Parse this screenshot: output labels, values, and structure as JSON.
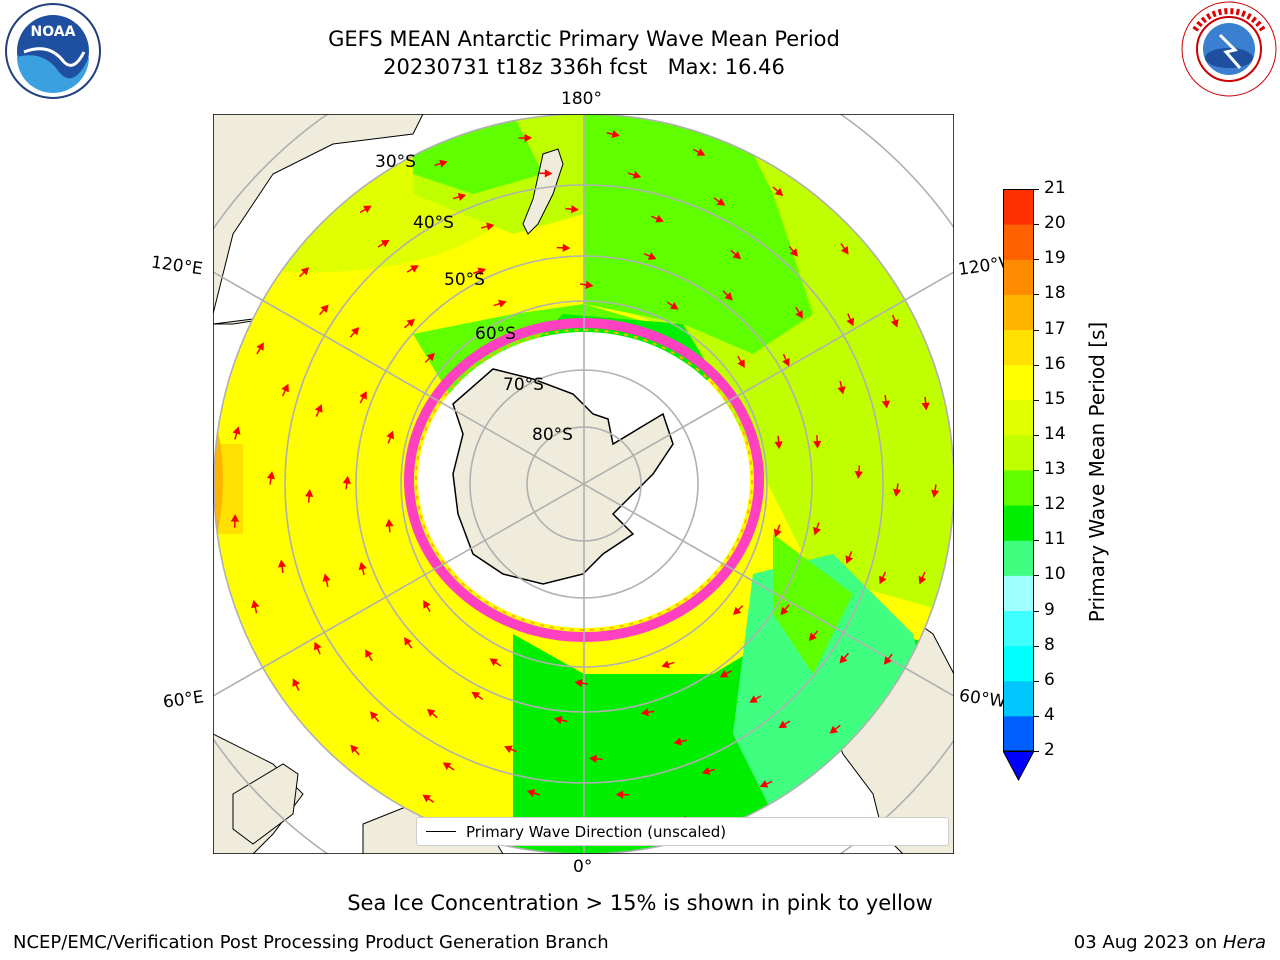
{
  "header": {
    "title_line1": "GEFS MEAN Antarctic Primary Wave Mean Period",
    "title_line2": "20230731 t18z 336h fcst   Max: 16.46"
  },
  "logos": {
    "left": {
      "name": "NOAA",
      "ring_text": "NATIONAL OCEANIC AND ATMOSPHERIC ADMINISTRATION · U.S. DEPARTMENT OF COMMERCE"
    },
    "right": {
      "ring_text": "NATIONAL WEATHER SERVICE"
    }
  },
  "map": {
    "lon_labels": {
      "top": "180°",
      "bottom": "0°",
      "left_upper": "120°E",
      "left_lower": "60°E",
      "right_upper": "120°W",
      "right_lower": "60°W"
    },
    "lat_labels": [
      "30°S",
      "40°S",
      "50°S",
      "60°S",
      "70°S",
      "80°S"
    ],
    "legend_label": "Primary Wave Direction (unscaled)",
    "colors": {
      "land": "#efecdc",
      "ice_edge": "#ff40c0",
      "arrow": "#ff0000",
      "grid": "#b0b0b0"
    }
  },
  "colorbar": {
    "label": "Primary Wave Mean Period [s]",
    "ticks": [
      "2",
      "4",
      "6",
      "8",
      "9",
      "10",
      "11",
      "12",
      "13",
      "14",
      "15",
      "16",
      "17",
      "18",
      "19",
      "20",
      "21"
    ],
    "colors": [
      "#0060ff",
      "#00c8ff",
      "#00ffff",
      "#40ffff",
      "#a0ffff",
      "#40ff80",
      "#00ee00",
      "#60ff00",
      "#c0ff00",
      "#e0ff00",
      "#ffff00",
      "#ffe000",
      "#ffb400",
      "#ff8c00",
      "#ff6000",
      "#ff3000",
      "#ff0000"
    ],
    "under_color": "#0000ff"
  },
  "notes": {
    "sea_ice": "Sea Ice Concentration > 15% is shown in pink to yellow"
  },
  "footer": {
    "left": "NCEP/EMC/Verification Post Processing Product Generation Branch",
    "right_date": "03 Aug 2023 on ",
    "right_machine": "Hera"
  }
}
